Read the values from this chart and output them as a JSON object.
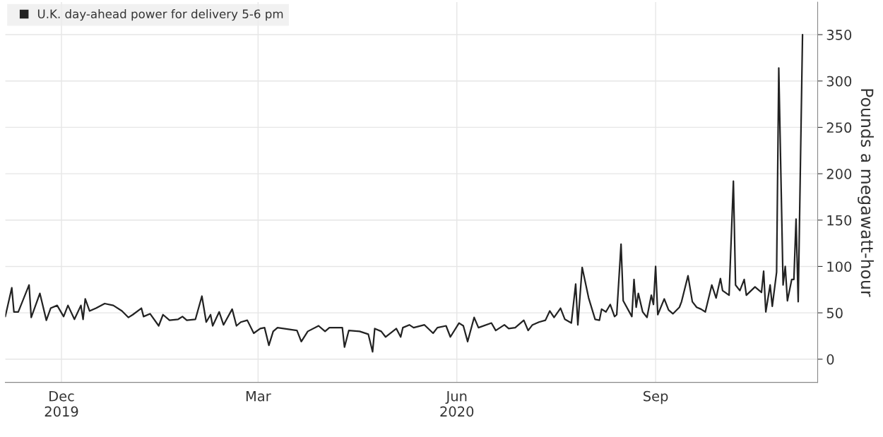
{
  "chart_data": {
    "type": "line",
    "x": [
      "2019-11-05",
      "2019-11-08",
      "2019-11-09",
      "2019-11-11",
      "2019-11-16",
      "2019-11-17",
      "2019-11-21",
      "2019-11-24",
      "2019-11-26",
      "2019-11-29",
      "2019-12-02",
      "2019-12-04",
      "2019-12-07",
      "2019-12-10",
      "2019-12-11",
      "2019-12-12",
      "2019-12-14",
      "2019-12-17",
      "2019-12-21",
      "2019-12-25",
      "2019-12-29",
      "2020-01-01",
      "2020-01-03",
      "2020-01-07",
      "2020-01-08",
      "2020-01-11",
      "2020-01-15",
      "2020-01-17",
      "2020-01-20",
      "2020-01-24",
      "2020-01-26",
      "2020-01-28",
      "2020-02-01",
      "2020-02-04",
      "2020-02-06",
      "2020-02-08",
      "2020-02-09",
      "2020-02-12",
      "2020-02-14",
      "2020-02-18",
      "2020-02-20",
      "2020-02-22",
      "2020-02-25",
      "2020-02-28",
      "2020-03-02",
      "2020-03-04",
      "2020-03-06",
      "2020-03-08",
      "2020-03-10",
      "2020-03-19",
      "2020-03-21",
      "2020-03-24",
      "2020-03-29",
      "2020-04-01",
      "2020-04-03",
      "2020-04-09",
      "2020-04-10",
      "2020-04-12",
      "2020-04-17",
      "2020-04-21",
      "2020-04-23",
      "2020-04-24",
      "2020-04-27",
      "2020-04-29",
      "2020-05-04",
      "2020-05-06",
      "2020-05-07",
      "2020-05-10",
      "2020-05-12",
      "2020-05-17",
      "2020-05-21",
      "2020-05-23",
      "2020-05-27",
      "2020-05-29",
      "2020-06-02",
      "2020-06-04",
      "2020-06-06",
      "2020-06-09",
      "2020-06-11",
      "2020-06-17",
      "2020-06-19",
      "2020-06-23",
      "2020-06-25",
      "2020-06-28",
      "2020-07-02",
      "2020-07-04",
      "2020-07-06",
      "2020-07-09",
      "2020-07-12",
      "2020-07-14",
      "2020-07-16",
      "2020-07-19",
      "2020-07-21",
      "2020-07-24",
      "2020-07-26",
      "2020-07-27",
      "2020-07-29",
      "2020-08-01",
      "2020-08-04",
      "2020-08-06",
      "2020-08-07",
      "2020-08-09",
      "2020-08-11",
      "2020-08-13",
      "2020-08-14",
      "2020-08-16",
      "2020-08-17",
      "2020-08-21",
      "2020-08-22",
      "2020-08-23",
      "2020-08-24",
      "2020-08-26",
      "2020-08-28",
      "2020-08-30",
      "2020-08-31",
      "2020-09-01",
      "2020-09-02",
      "2020-09-05",
      "2020-09-07",
      "2020-09-09",
      "2020-09-12",
      "2020-09-13",
      "2020-09-16",
      "2020-09-18",
      "2020-09-20",
      "2020-09-22",
      "2020-09-24",
      "2020-09-27",
      "2020-09-29",
      "2020-10-01",
      "2020-10-02",
      "2020-10-05",
      "2020-10-07",
      "2020-10-08",
      "2020-10-10",
      "2020-10-12",
      "2020-10-13",
      "2020-10-17",
      "2020-10-19",
      "2020-10-20",
      "2020-10-21",
      "2020-10-22",
      "2020-10-24",
      "2020-10-25",
      "2020-10-27",
      "2020-10-28",
      "2020-10-30",
      "2020-10-31",
      "2020-11-01",
      "2020-11-03",
      "2020-11-04",
      "2020-11-05",
      "2020-11-06",
      "2020-11-08"
    ],
    "series": [
      {
        "name": "U.K. day-ahead power for delivery 5-6 pm",
        "color": "#222222",
        "values": [
          46,
          77,
          51,
          51,
          80,
          45,
          71,
          42,
          55,
          58,
          46,
          58,
          43,
          58,
          43,
          65,
          52,
          55,
          60,
          58,
          52,
          45,
          48,
          55,
          46,
          49,
          36,
          48,
          42,
          43,
          46,
          42,
          43,
          68,
          40,
          48,
          36,
          51,
          37,
          54,
          36,
          40,
          42,
          28,
          33,
          34,
          15,
          30,
          34,
          31,
          19,
          30,
          36,
          30,
          34,
          34,
          13,
          31,
          30,
          27,
          8,
          33,
          30,
          24,
          33,
          24,
          34,
          37,
          34,
          37,
          28,
          34,
          36,
          24,
          39,
          36,
          19,
          45,
          34,
          39,
          31,
          37,
          33,
          34,
          42,
          31,
          37,
          40,
          42,
          52,
          45,
          55,
          43,
          39,
          81,
          37,
          99,
          66,
          43,
          42,
          54,
          51,
          59,
          46,
          48,
          124,
          63,
          46,
          86,
          56,
          71,
          51,
          45,
          69,
          59,
          100,
          48,
          65,
          53,
          49,
          56,
          62,
          90,
          62,
          56,
          54,
          51,
          80,
          66,
          87,
          74,
          69,
          192,
          80,
          74,
          86,
          69,
          78,
          74,
          72,
          95,
          51,
          80,
          57,
          94,
          314,
          80,
          100,
          63,
          86,
          86,
          151,
          62,
          350
        ]
      }
    ],
    "ylabel": "Pounds a megawatt-hour",
    "xlim": [
      "2019-11-05",
      "2020-11-15"
    ],
    "xticks": [
      {
        "value": "2019-12-01",
        "label": "Dec\n2019"
      },
      {
        "value": "2020-03-01",
        "label": "Mar"
      },
      {
        "value": "2020-06-01",
        "label": "Jun\n2020"
      },
      {
        "value": "2020-09-01",
        "label": "Sep"
      }
    ],
    "ylim": [
      -25,
      385
    ],
    "yticks": [
      0,
      50,
      100,
      150,
      200,
      250,
      300,
      350
    ],
    "grid": true,
    "legend": "top left",
    "line_style": "solid",
    "marker": "none"
  }
}
